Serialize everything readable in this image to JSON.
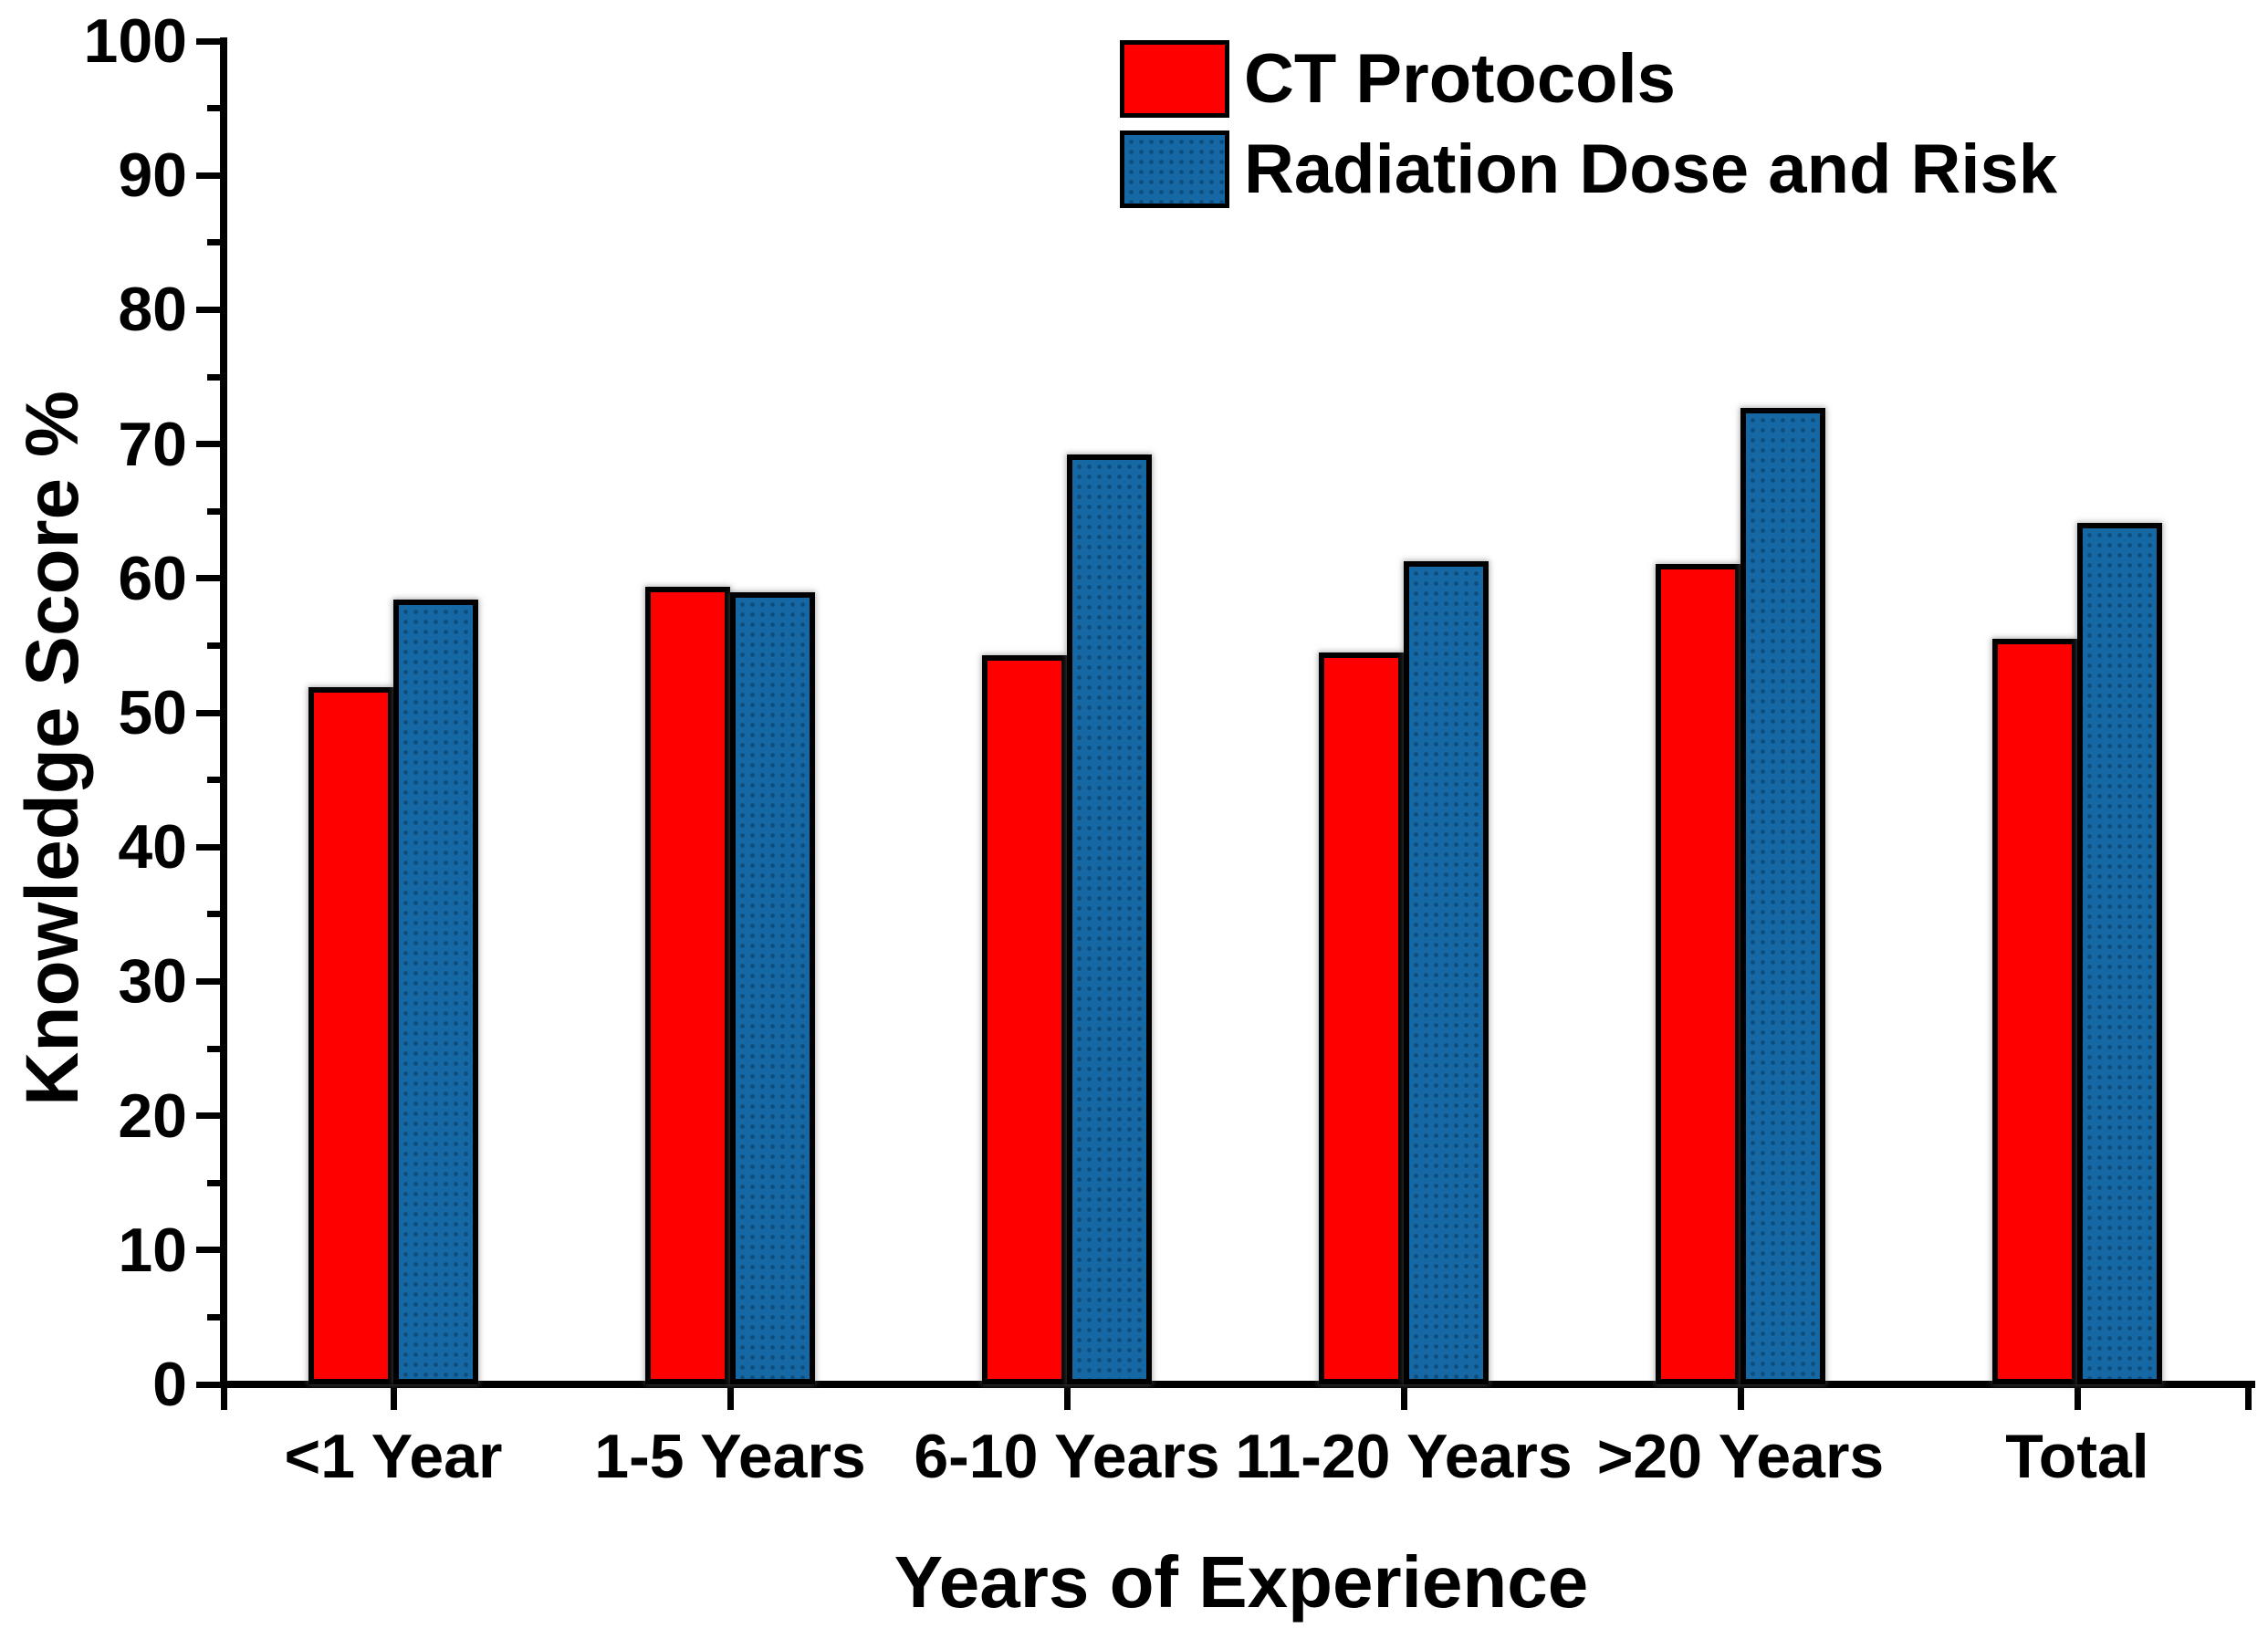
{
  "chart_data": {
    "type": "bar",
    "title": "",
    "xlabel": "Years of Experience",
    "ylabel": "Knowledge Score %",
    "categories": [
      "<1 Year",
      "1-5 Years",
      "6-10 Years",
      "11-20 Years",
      ">20 Years",
      "Total"
    ],
    "series": [
      {
        "name": "CT Protocols",
        "color": "#FE0000",
        "pattern": "solid",
        "values": [
          51.9,
          59.4,
          54.3,
          54.5,
          61.1,
          55.5
        ]
      },
      {
        "name": "Radiation Dose and Risk",
        "color": "#1568A3",
        "pattern": "dotted",
        "values": [
          58.4,
          59.0,
          69.2,
          61.3,
          72.7,
          64.1
        ]
      }
    ],
    "ylim": [
      0,
      100
    ],
    "ytick_step": 10,
    "ytick_minor_step": 5,
    "grid": false,
    "legend_position": "top-right",
    "background_color": "#FFFFFF",
    "axis_color": "#000000"
  }
}
